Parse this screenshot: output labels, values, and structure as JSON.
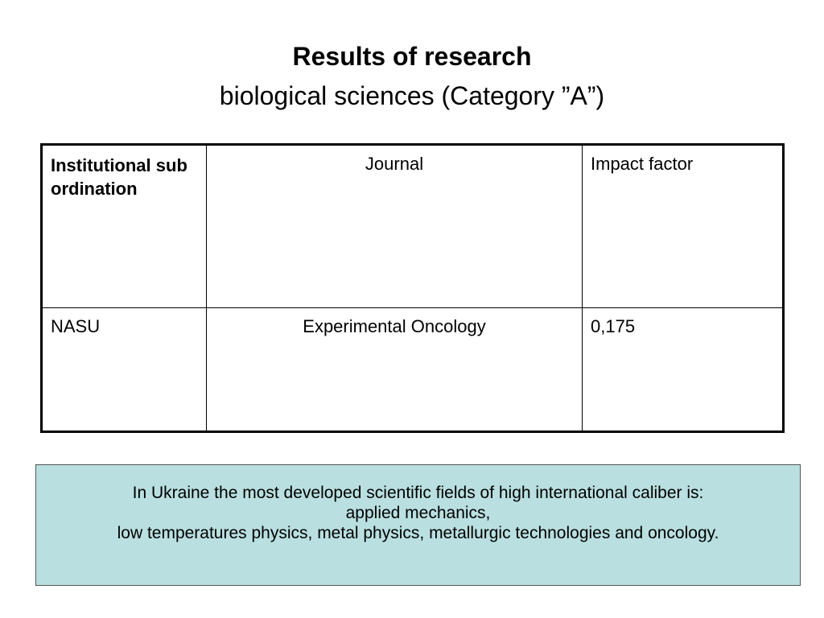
{
  "header": {
    "title": "Results of research",
    "subtitle": "biological sciences (Category ”A”)"
  },
  "table": {
    "columns": [
      "Institutional subordination",
      "Journal",
      "Impact factor"
    ],
    "rows": [
      [
        "NASU",
        "Experimental Oncology",
        "0,175"
      ]
    ]
  },
  "note": {
    "lines": [
      "In Ukraine the most developed scientific fields of high international caliber is:",
      "applied mechanics,",
      "low temperatures physics, metal physics, metallurgic technologies and oncology."
    ]
  }
}
